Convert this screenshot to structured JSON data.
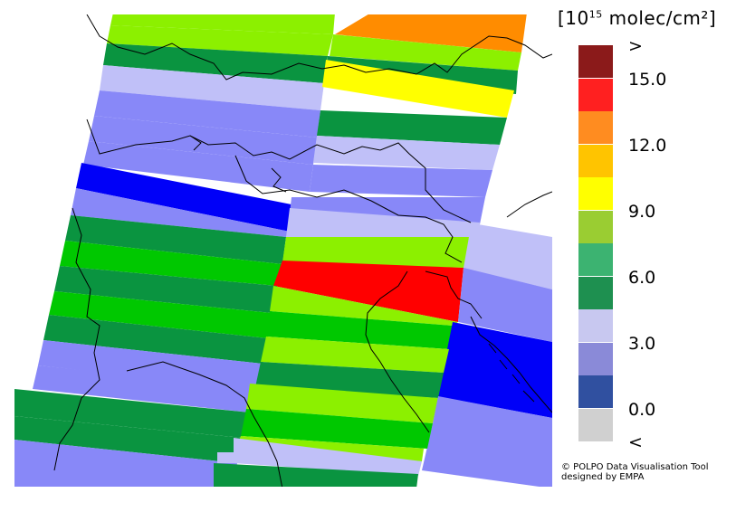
{
  "legend": {
    "unit_prefix": "[10",
    "unit_exponent": "15",
    "unit_suffix": " molec/cm²]",
    "classes": [
      {
        "color": "#8b1a1a",
        "label": ">"
      },
      {
        "color": "#ff2020",
        "label": "15.0"
      },
      {
        "color": "#ff8c20",
        "label": ""
      },
      {
        "color": "#ffc400",
        "label": "12.0"
      },
      {
        "color": "#ffff00",
        "label": ""
      },
      {
        "color": "#9acd32",
        "label": "9.0"
      },
      {
        "color": "#3cb371",
        "label": ""
      },
      {
        "color": "#1e9050",
        "label": "6.0"
      },
      {
        "color": "#c8c8f0",
        "label": ""
      },
      {
        "color": "#8a8ad8",
        "label": "3.0"
      },
      {
        "color": "#3050a0",
        "label": ""
      },
      {
        "color": "#d0d0d0",
        "label": "0.0"
      }
    ],
    "below_label": "<"
  },
  "credit": {
    "line1": "© POLPO Data Visualisation Tool",
    "line2": "designed by EMPA"
  },
  "palette": {
    "dark_green": "#0a9440",
    "green": "#00c800",
    "lime": "#8cf000",
    "yellow": "#ffff00",
    "orange": "#ff8c00",
    "red": "#ff0000",
    "light_lavender": "#c0c0f8",
    "lavender": "#8888f8",
    "blue": "#0000f8"
  }
}
